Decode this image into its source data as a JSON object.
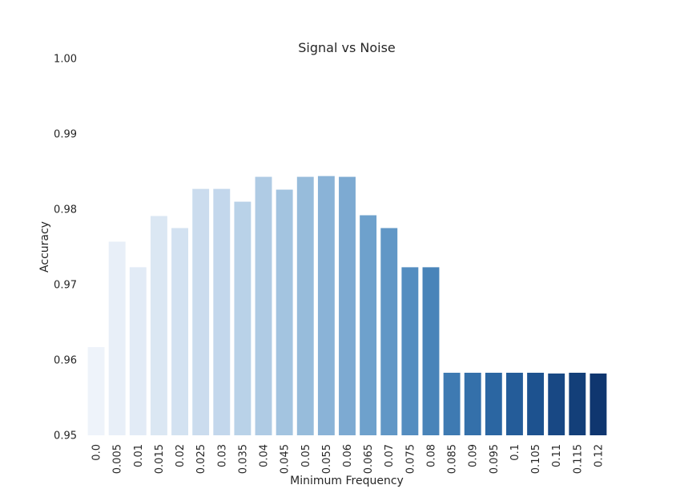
{
  "chart_data": {
    "type": "bar",
    "title": "Signal vs Noise",
    "xlabel": "Minimum Frequency",
    "ylabel": "Accuracy",
    "ylim": [
      0.95,
      1.0
    ],
    "yticks": [
      "0.95",
      "0.96",
      "0.97",
      "0.98",
      "0.99",
      "1.00"
    ],
    "grid": false,
    "palette": "Blues",
    "colors": [
      "#eef3fa",
      "#e8eff8",
      "#e2ebf6",
      "#dbe7f3",
      "#d3e2f1",
      "#cbdcee",
      "#c3d7ec",
      "#b9d2e8",
      "#afcbe4",
      "#a3c4e0",
      "#97bcdb",
      "#8ab3d7",
      "#7daad2",
      "#6ea1cc",
      "#6197c6",
      "#548dc0",
      "#4984b9",
      "#3e7ab2",
      "#3470aa",
      "#2b66a2",
      "#245c99",
      "#1d528f",
      "#184884",
      "#133f79",
      "#0f366f"
    ],
    "categories": [
      "0.0",
      "0.005",
      "0.01",
      "0.015",
      "0.02",
      "0.025",
      "0.03",
      "0.035",
      "0.04",
      "0.045",
      "0.05",
      "0.055",
      "0.06",
      "0.065",
      "0.07",
      "0.075",
      "0.08",
      "0.085",
      "0.09",
      "0.095",
      "0.1",
      "0.105",
      "0.11",
      "0.115",
      "0.12"
    ],
    "values": [
      0.9617,
      0.9757,
      0.9723,
      0.9791,
      0.9775,
      0.9827,
      0.9827,
      0.981,
      0.9843,
      0.9826,
      0.9843,
      0.9844,
      0.9843,
      0.9792,
      0.9775,
      0.9723,
      0.9723,
      0.9583,
      0.9583,
      0.9583,
      0.9583,
      0.9583,
      0.9582,
      0.9583,
      0.9582
    ]
  }
}
